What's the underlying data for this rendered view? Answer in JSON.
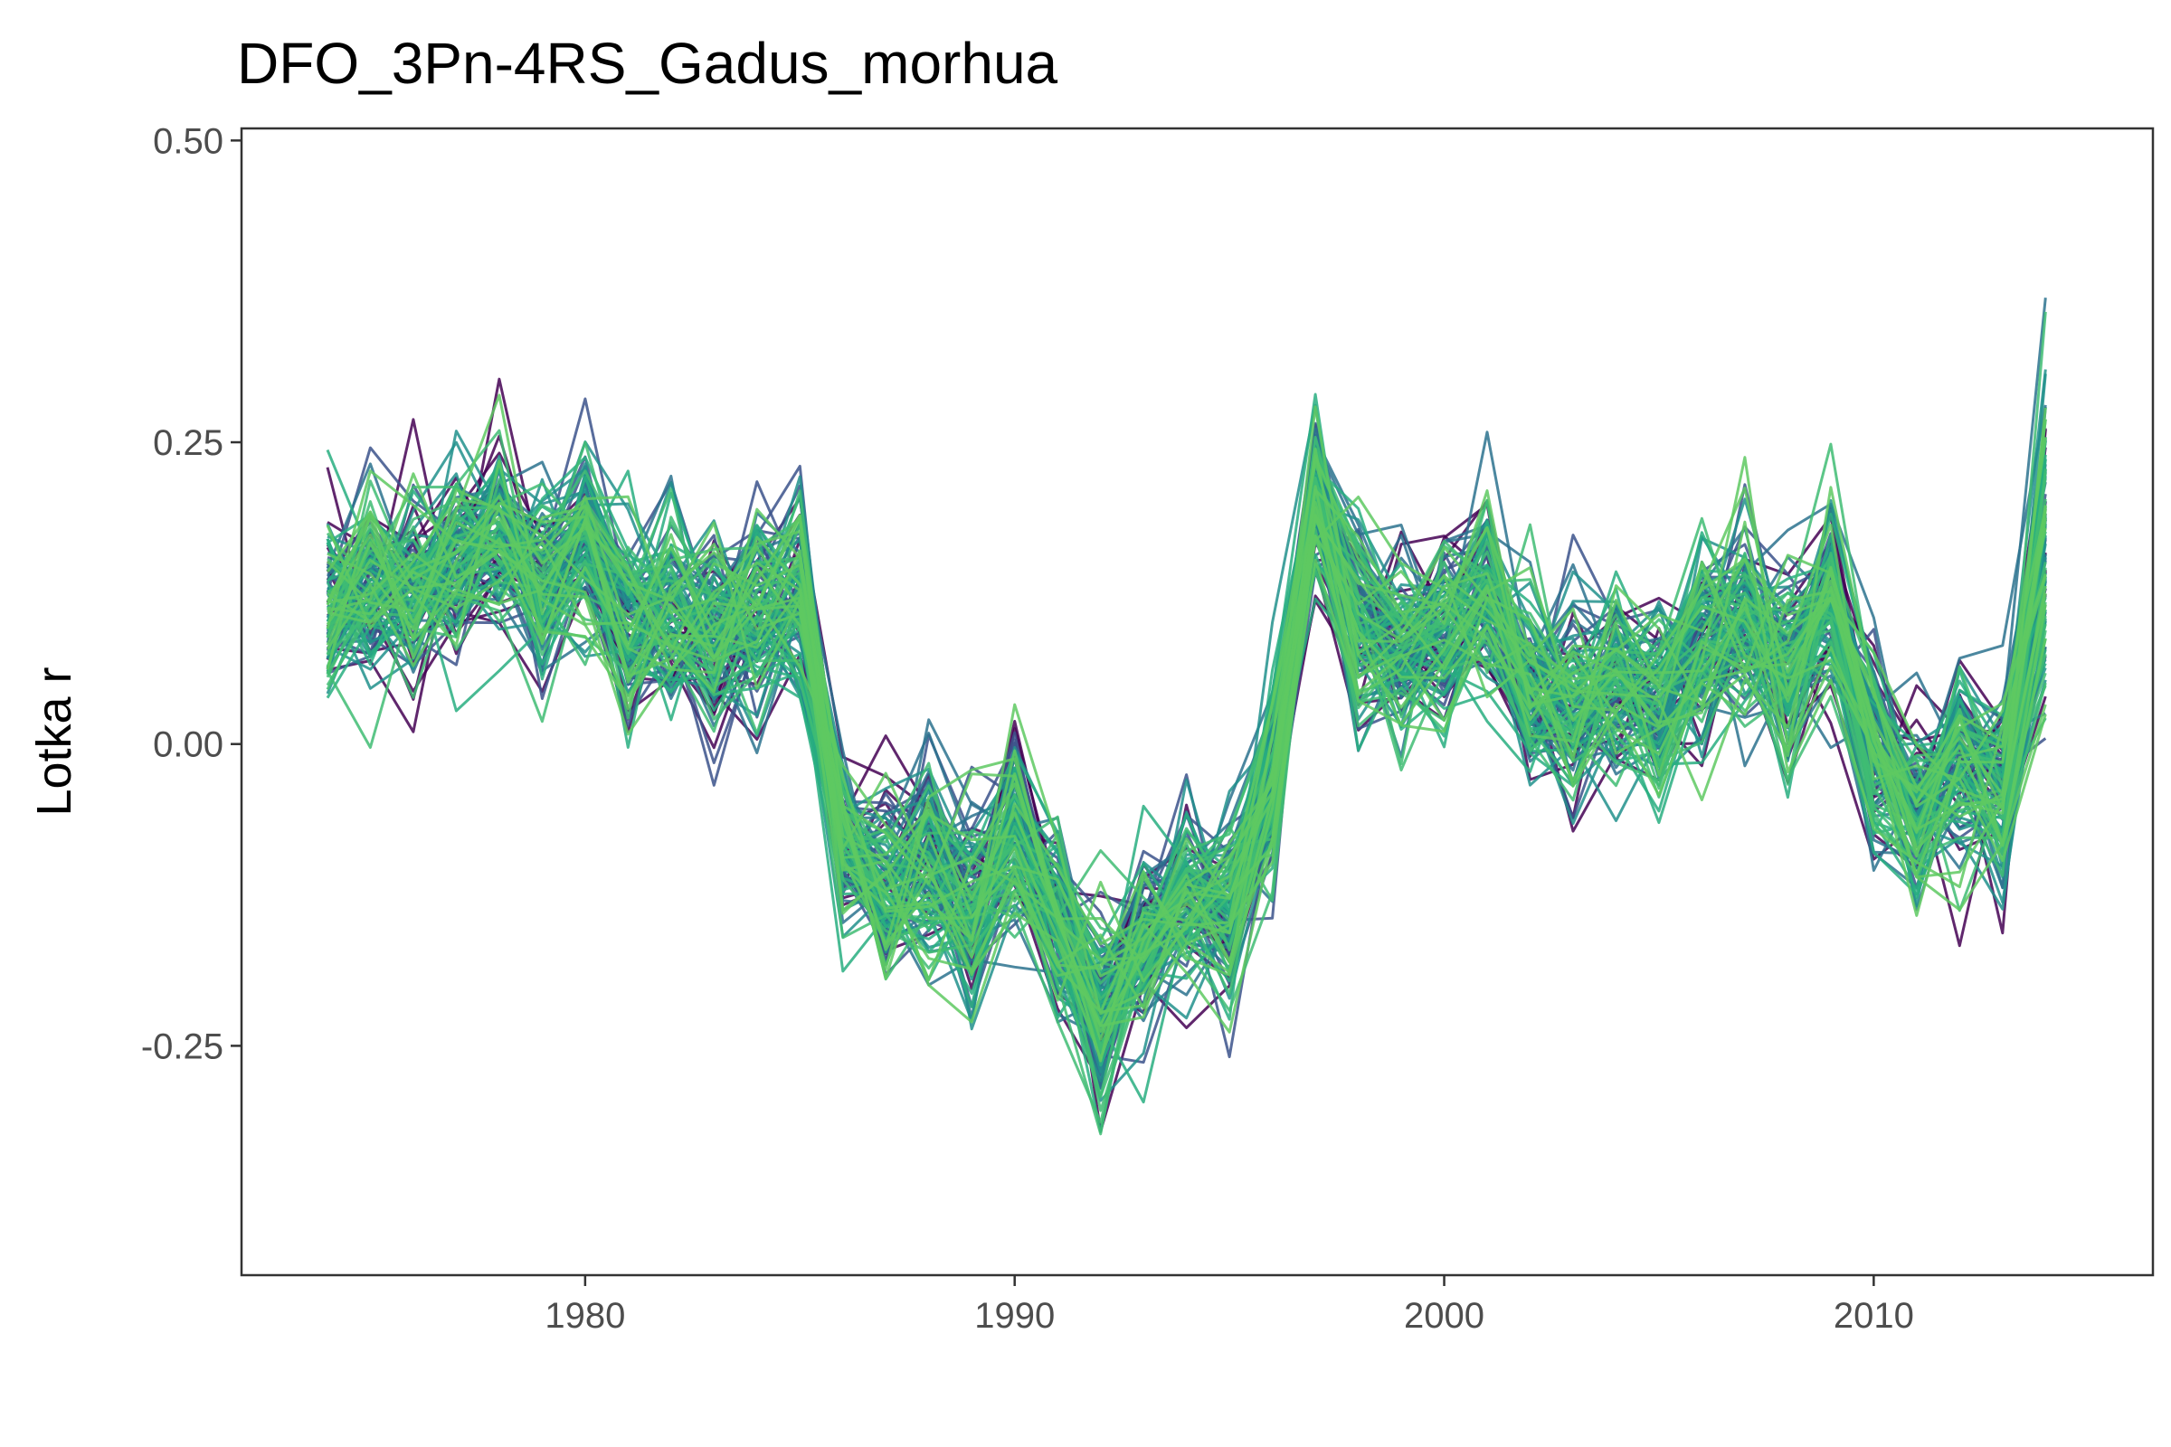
{
  "chart_data": {
    "type": "line",
    "title": "DFO_3Pn-4RS_Gadus_morhua",
    "xlabel": "",
    "ylabel": "Lotka r",
    "xlim": [
      1972,
      2016.5
    ],
    "ylim": [
      -0.44,
      0.51
    ],
    "x_ticks": [
      1980,
      1990,
      2000,
      2010
    ],
    "x_tick_labels": [
      "1980",
      "1990",
      "2000",
      "2010"
    ],
    "y_ticks": [
      0.5,
      0.25,
      0.0,
      -0.25
    ],
    "y_tick_labels": [
      "0.50",
      "0.25",
      "0.00",
      "-0.25"
    ],
    "grid": false,
    "legend": "none",
    "palette": [
      "#440154",
      "#3b528b",
      "#2c728e",
      "#21918c",
      "#28ae80",
      "#3fbc73",
      "#5ec962"
    ],
    "x": [
      1974,
      1975,
      1976,
      1977,
      1978,
      1979,
      1980,
      1981,
      1982,
      1983,
      1984,
      1985,
      1986,
      1987,
      1988,
      1989,
      1990,
      1991,
      1992,
      1993,
      1994,
      1995,
      1996,
      1997,
      1998,
      1999,
      2000,
      2001,
      2002,
      2003,
      2004,
      2005,
      2006,
      2007,
      2008,
      2009,
      2010,
      2011,
      2012,
      2013,
      2014
    ],
    "central_trend": [
      0.11,
      0.13,
      0.12,
      0.15,
      0.17,
      0.13,
      0.17,
      0.1,
      0.11,
      0.09,
      0.11,
      0.12,
      -0.08,
      -0.12,
      -0.1,
      -0.13,
      -0.08,
      -0.15,
      -0.22,
      -0.17,
      -0.13,
      -0.14,
      -0.03,
      0.2,
      0.1,
      0.08,
      0.09,
      0.13,
      0.04,
      0.03,
      0.05,
      0.03,
      0.08,
      0.1,
      0.06,
      0.12,
      -0.01,
      -0.06,
      -0.02,
      -0.04,
      0.16
    ],
    "series_count": 120
  }
}
